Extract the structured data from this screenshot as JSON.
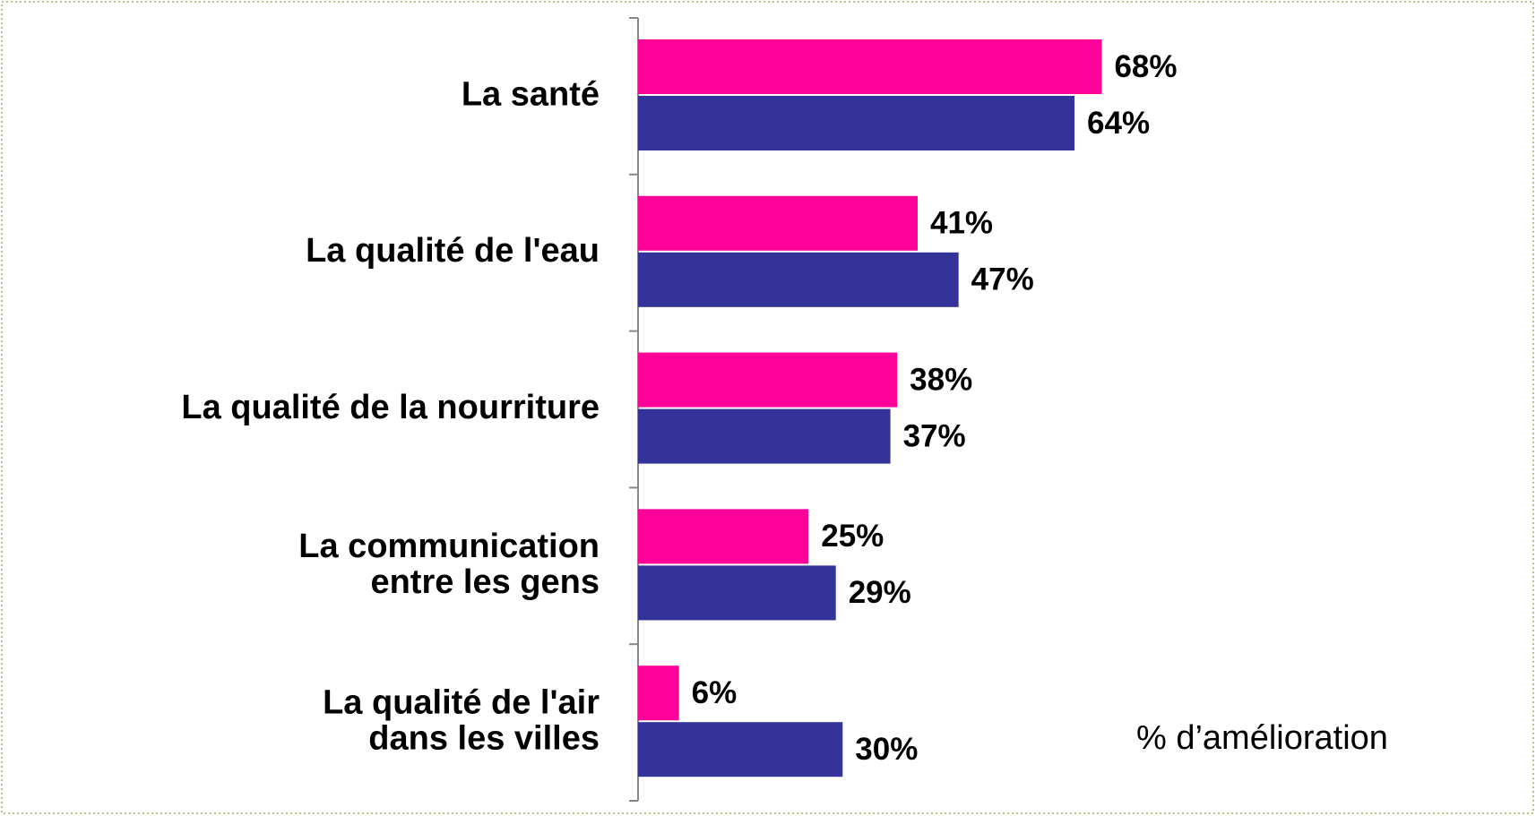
{
  "chart_data": {
    "type": "hbar",
    "categories": [
      "La santé",
      "La qualité de l'eau",
      "La qualité de la nourriture",
      "La communication\nentre les gens",
      "La qualité de l'air\ndans les villes"
    ],
    "series": [
      {
        "color": "#ff0099",
        "values": [
          68,
          41,
          38,
          25,
          6
        ],
        "value_labels": [
          "68%",
          "41%",
          "38%",
          "25%",
          "6%"
        ]
      },
      {
        "color": "#333399",
        "values": [
          64,
          47,
          37,
          29,
          30
        ],
        "value_labels": [
          "64%",
          "47%",
          "37%",
          "29%",
          "30%"
        ]
      }
    ],
    "xlim": [
      0,
      100
    ],
    "annotation": "% d’amélioration"
  }
}
